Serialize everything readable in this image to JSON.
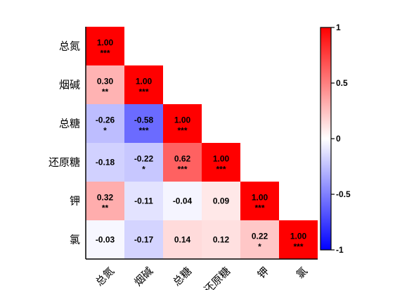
{
  "chart_data": {
    "type": "heatmap",
    "variables": [
      "总氮",
      "烟碱",
      "总糖",
      "还原糖",
      "钾",
      "氯"
    ],
    "matrix": [
      [
        1.0,
        null,
        null,
        null,
        null,
        null
      ],
      [
        0.3,
        1.0,
        null,
        null,
        null,
        null
      ],
      [
        -0.26,
        -0.58,
        1.0,
        null,
        null,
        null
      ],
      [
        -0.18,
        -0.22,
        0.62,
        1.0,
        null,
        null
      ],
      [
        0.32,
        -0.11,
        -0.04,
        0.09,
        1.0,
        null
      ],
      [
        -0.03,
        -0.17,
        0.14,
        0.12,
        0.22,
        1.0
      ]
    ],
    "labels": [
      [
        "1.00",
        "",
        "",
        "",
        "",
        ""
      ],
      [
        "0.30",
        "1.00",
        "",
        "",
        "",
        ""
      ],
      [
        "-0.26",
        "-0.58",
        "1.00",
        "",
        "",
        ""
      ],
      [
        "-0.18",
        "-0.22",
        "0.62",
        "1.00",
        "",
        ""
      ],
      [
        "0.32",
        "-0.11",
        "-0.04",
        "0.09",
        "1.00",
        ""
      ],
      [
        "-0.03",
        "-0.17",
        "0.14",
        "0.12",
        "0.22",
        "1.00"
      ]
    ],
    "significance": [
      [
        "***",
        "",
        "",
        "",
        "",
        ""
      ],
      [
        "**",
        "***",
        "",
        "",
        "",
        ""
      ],
      [
        "*",
        "***",
        "***",
        "",
        "",
        ""
      ],
      [
        "",
        "*",
        "***",
        "***",
        "",
        ""
      ],
      [
        "**",
        "",
        "",
        "",
        "***",
        ""
      ],
      [
        "",
        "",
        "",
        "",
        "*",
        "***"
      ]
    ],
    "colorbar": {
      "range": [
        -1,
        1
      ],
      "ticks": [
        1,
        0.5,
        0,
        -0.5,
        -1
      ],
      "tick_labels": [
        "1",
        "0.5",
        "0",
        "-0.5",
        "-1"
      ],
      "colors": {
        "negative": "#0000ff",
        "zero": "#ffffff",
        "positive": "#ff0000"
      }
    },
    "title": "",
    "xlabel": "",
    "ylabel": ""
  }
}
